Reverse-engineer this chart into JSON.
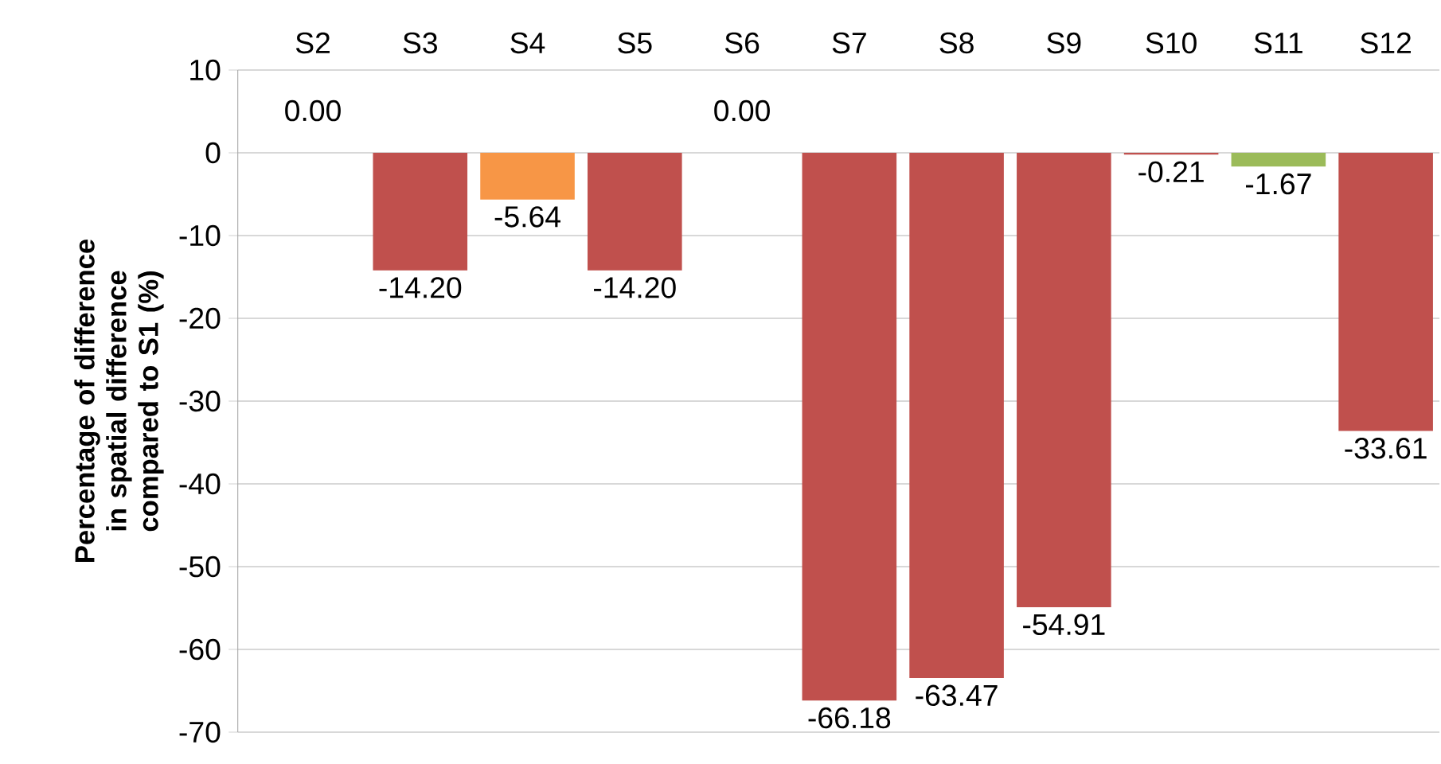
{
  "chart_data": {
    "type": "bar",
    "ylabel": "Percentage of difference in spatial difference compared to S1 (%)",
    "categories": [
      "S2",
      "S3",
      "S4",
      "S5",
      "S6",
      "S7",
      "S8",
      "S9",
      "S10",
      "S11",
      "S12"
    ],
    "values": [
      0,
      -14.2,
      -5.64,
      -14.2,
      0,
      -66.18,
      -63.47,
      -54.91,
      -0.21,
      -1.67,
      -33.61
    ],
    "colors": [
      "#c0504d",
      "#c0504d",
      "#f79646",
      "#c0504d",
      "#c0504d",
      "#c0504d",
      "#c0504d",
      "#c0504d",
      "#c0504d",
      "#9bbb59",
      "#c0504d"
    ],
    "value_labels": [
      "0.00",
      "-14.20",
      "-5.64",
      "-14.20",
      "0.00",
      "-66.18",
      "-63.47",
      "-54.91",
      "-0.21",
      "-1.67",
      "-33.61"
    ],
    "ylim": [
      -70,
      10
    ],
    "yticks": [
      -70,
      -60,
      -50,
      -40,
      -30,
      -20,
      -10,
      0,
      10
    ],
    "grid": "y"
  }
}
